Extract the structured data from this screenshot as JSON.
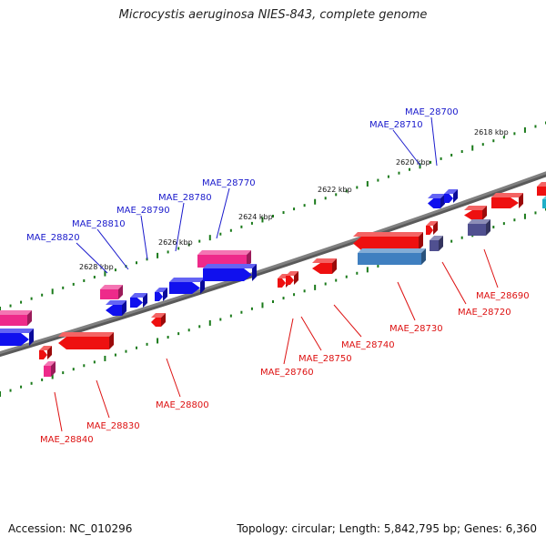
{
  "title": "Microcystis aeruginosa NIES-843, complete genome",
  "accession": "Accession: NC_010296",
  "summary": "Topology: circular; Length: 5,842,795 bp; Genes: 6,360",
  "colors": {
    "backbone": "#808080",
    "tick": "#1a7a1a",
    "forward_label": "#1a1acc",
    "reverse_label": "#dd1111",
    "gene_blue": "#1010ee",
    "gene_red": "#ee1010",
    "gene_pink": "#ee2a8a",
    "gene_steel": "#3f7fc0",
    "gene_purple": "#505090",
    "gene_cyan": "#20b0c8"
  },
  "scale_labels": [
    "2628 kbp",
    "2626 kbp",
    "2624 kbp",
    "2622 kbp",
    "2620 kbp",
    "2618 kbp"
  ],
  "forward_labels": [
    "MAE_28820",
    "MAE_28810",
    "MAE_28790",
    "MAE_28780",
    "MAE_28770",
    "MAE_28710",
    "MAE_28700"
  ],
  "reverse_labels": [
    "MAE_28840",
    "MAE_28830",
    "MAE_28800",
    "MAE_28760",
    "MAE_28750",
    "MAE_28740",
    "MAE_28730",
    "MAE_28720",
    "MAE_28690"
  ]
}
